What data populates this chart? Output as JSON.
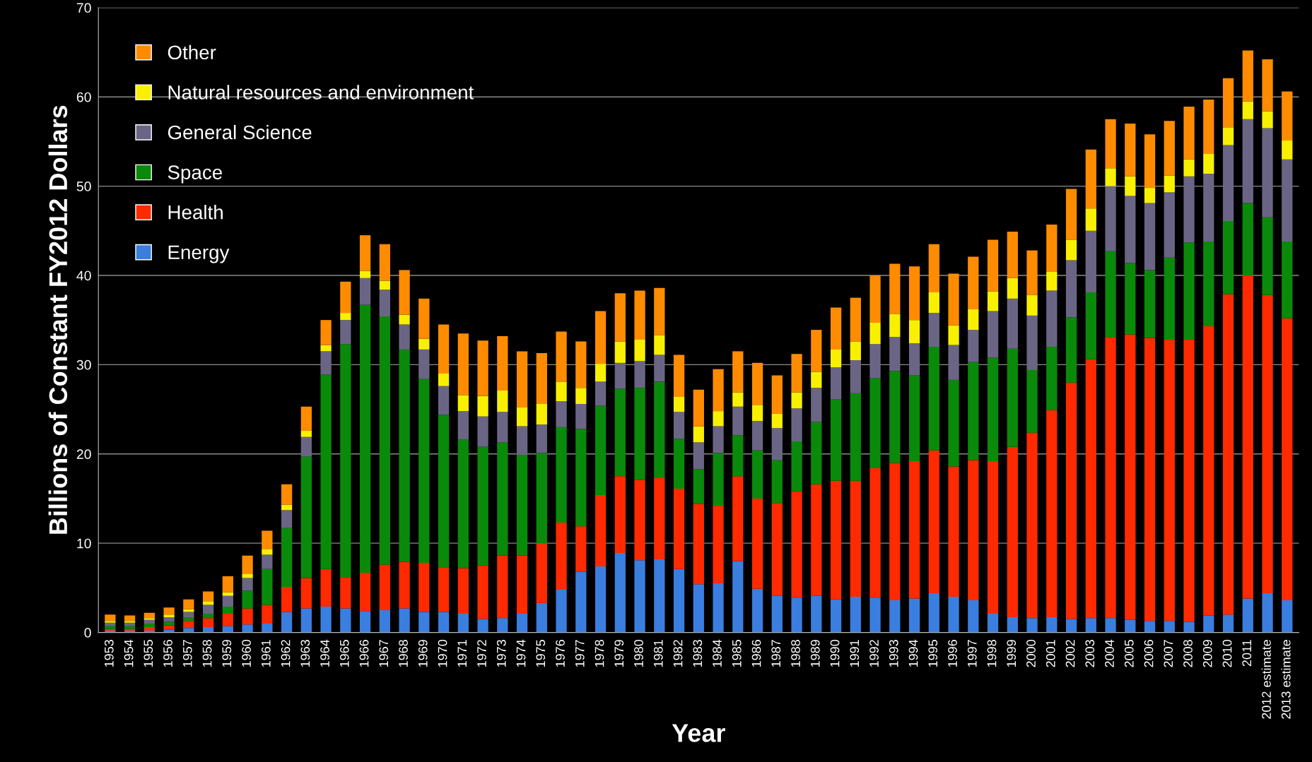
{
  "chart_data": {
    "type": "bar",
    "stacked": true,
    "xlabel": "Year",
    "ylabel": "Billions of Constant FY2012 Dollars",
    "categories": [
      "1953",
      "1954",
      "1955",
      "1956",
      "1957",
      "1958",
      "1959",
      "1960",
      "1961",
      "1962",
      "1963",
      "1964",
      "1965",
      "1966",
      "1967",
      "1968",
      "1969",
      "1970",
      "1971",
      "1972",
      "1973",
      "1974",
      "1975",
      "1976",
      "1977",
      "1978",
      "1979",
      "1980",
      "1981",
      "1982",
      "1983",
      "1984",
      "1985",
      "1986",
      "1987",
      "1988",
      "1989",
      "1990",
      "1991",
      "1992",
      "1993",
      "1994",
      "1995",
      "1996",
      "1997",
      "1998",
      "1999",
      "2000",
      "2001",
      "2002",
      "2003",
      "2004",
      "2005",
      "2006",
      "2007",
      "2008",
      "2009",
      "2010",
      "2011",
      "2012 estimate",
      "2013 estimate"
    ],
    "series": [
      {
        "name": "Energy",
        "color": "#3a7ee0",
        "values": [
          0.2,
          0.2,
          0.2,
          0.3,
          0.5,
          0.6,
          0.7,
          0.9,
          1.0,
          2.3,
          2.7,
          2.9,
          2.7,
          2.4,
          2.5,
          2.7,
          2.3,
          2.3,
          2.1,
          1.5,
          1.6,
          2.1,
          3.3,
          4.8,
          6.8,
          7.4,
          8.9,
          8.1,
          8.2,
          7.1,
          5.4,
          5.5,
          8.0,
          4.9,
          4.1,
          3.9,
          4.1,
          3.7,
          4.0,
          3.9,
          3.6,
          3.8,
          4.4,
          4.0,
          3.6,
          2.1,
          1.7,
          1.6,
          1.7,
          1.5,
          1.6,
          1.6,
          1.4,
          1.3,
          1.3,
          1.2,
          1.9,
          2.0,
          3.8,
          4.4,
          3.6
        ]
      },
      {
        "name": "Health",
        "color": "#ff2a00",
        "values": [
          0.2,
          0.2,
          0.4,
          0.5,
          0.8,
          1.0,
          1.4,
          1.8,
          2.1,
          2.8,
          3.4,
          4.2,
          3.5,
          4.3,
          5.1,
          5.2,
          5.5,
          5.0,
          5.1,
          6.0,
          7.0,
          6.5,
          6.7,
          7.5,
          5.1,
          8.0,
          8.6,
          9.0,
          9.1,
          9.0,
          9.0,
          8.7,
          9.5,
          10.1,
          10.4,
          11.9,
          12.5,
          13.3,
          13.0,
          14.5,
          15.4,
          15.4,
          16.0,
          14.6,
          15.7,
          17.1,
          19.1,
          20.8,
          23.2,
          26.5,
          29.0,
          31.5,
          32.0,
          31.7,
          31.5,
          31.6,
          32.4,
          35.9,
          36.2,
          33.4,
          31.6
        ]
      },
      {
        "name": "Space",
        "color": "#0a8a0a",
        "values": [
          0.3,
          0.3,
          0.4,
          0.4,
          0.4,
          0.5,
          0.8,
          2.0,
          4.0,
          6.6,
          13.6,
          21.8,
          26.1,
          30.0,
          27.8,
          23.8,
          20.6,
          17.1,
          14.4,
          13.3,
          12.7,
          11.3,
          10.1,
          10.7,
          10.9,
          10.0,
          9.8,
          10.3,
          10.8,
          5.6,
          3.9,
          5.9,
          4.6,
          5.4,
          4.8,
          5.6,
          7.0,
          9.1,
          9.8,
          10.1,
          10.3,
          9.6,
          11.6,
          9.7,
          11.0,
          11.6,
          11.0,
          7.0,
          7.1,
          7.3,
          7.5,
          9.6,
          8.0,
          7.6,
          9.2,
          10.9,
          9.5,
          8.2,
          8.1,
          8.7,
          8.6
        ]
      },
      {
        "name": "General Science",
        "color": "#6b6585",
        "values": [
          0.4,
          0.4,
          0.4,
          0.5,
          0.6,
          1.0,
          1.2,
          1.4,
          1.6,
          2.0,
          2.2,
          2.6,
          2.7,
          3.0,
          3.0,
          2.8,
          3.3,
          3.2,
          3.2,
          3.4,
          3.4,
          3.2,
          3.2,
          2.9,
          2.8,
          2.7,
          2.9,
          3.0,
          3.0,
          3.0,
          3.0,
          3.0,
          3.2,
          3.3,
          3.6,
          3.7,
          3.8,
          3.6,
          3.7,
          3.8,
          3.8,
          3.6,
          3.8,
          3.9,
          3.6,
          5.2,
          5.6,
          6.1,
          6.3,
          6.4,
          6.9,
          7.3,
          7.5,
          7.5,
          7.3,
          7.4,
          7.6,
          8.5,
          9.4,
          10.0,
          9.2
        ]
      },
      {
        "name": "Natural resources and environment",
        "color": "#f8f000",
        "values": [
          0.2,
          0.2,
          0.2,
          0.3,
          0.3,
          0.4,
          0.4,
          0.5,
          0.6,
          0.6,
          0.7,
          0.7,
          0.8,
          0.8,
          1.0,
          1.1,
          1.2,
          1.4,
          1.8,
          2.3,
          2.4,
          2.1,
          2.3,
          2.2,
          1.8,
          2.0,
          2.4,
          2.4,
          2.2,
          1.7,
          1.8,
          1.7,
          1.6,
          1.8,
          1.6,
          1.8,
          1.8,
          2.0,
          2.1,
          2.4,
          2.6,
          2.6,
          2.3,
          2.2,
          2.3,
          2.2,
          2.3,
          2.3,
          2.1,
          2.3,
          2.5,
          2.0,
          2.2,
          1.7,
          1.9,
          1.9,
          2.2,
          2.0,
          2.0,
          1.9,
          2.1
        ]
      },
      {
        "name": "Other",
        "color": "#ff8c00",
        "values": [
          0.7,
          0.6,
          0.6,
          0.8,
          1.1,
          1.1,
          1.8,
          2.0,
          2.1,
          2.3,
          2.7,
          2.8,
          3.5,
          4.0,
          4.1,
          5.0,
          4.5,
          5.5,
          6.9,
          6.2,
          6.1,
          6.3,
          5.7,
          5.6,
          5.2,
          5.9,
          5.4,
          5.5,
          5.3,
          4.7,
          4.1,
          4.7,
          4.6,
          4.7,
          4.3,
          4.3,
          4.7,
          4.7,
          4.9,
          5.3,
          5.6,
          6.0,
          5.4,
          5.8,
          5.9,
          5.8,
          5.2,
          5.0,
          5.3,
          5.7,
          6.6,
          5.5,
          5.9,
          6.0,
          6.1,
          5.9,
          6.1,
          5.5,
          5.7,
          5.8,
          5.5
        ]
      }
    ],
    "ylim": [
      0,
      70
    ],
    "yticks": [
      0,
      10,
      20,
      30,
      40,
      50,
      60,
      70
    ],
    "grid": "y",
    "legend": "top left"
  }
}
